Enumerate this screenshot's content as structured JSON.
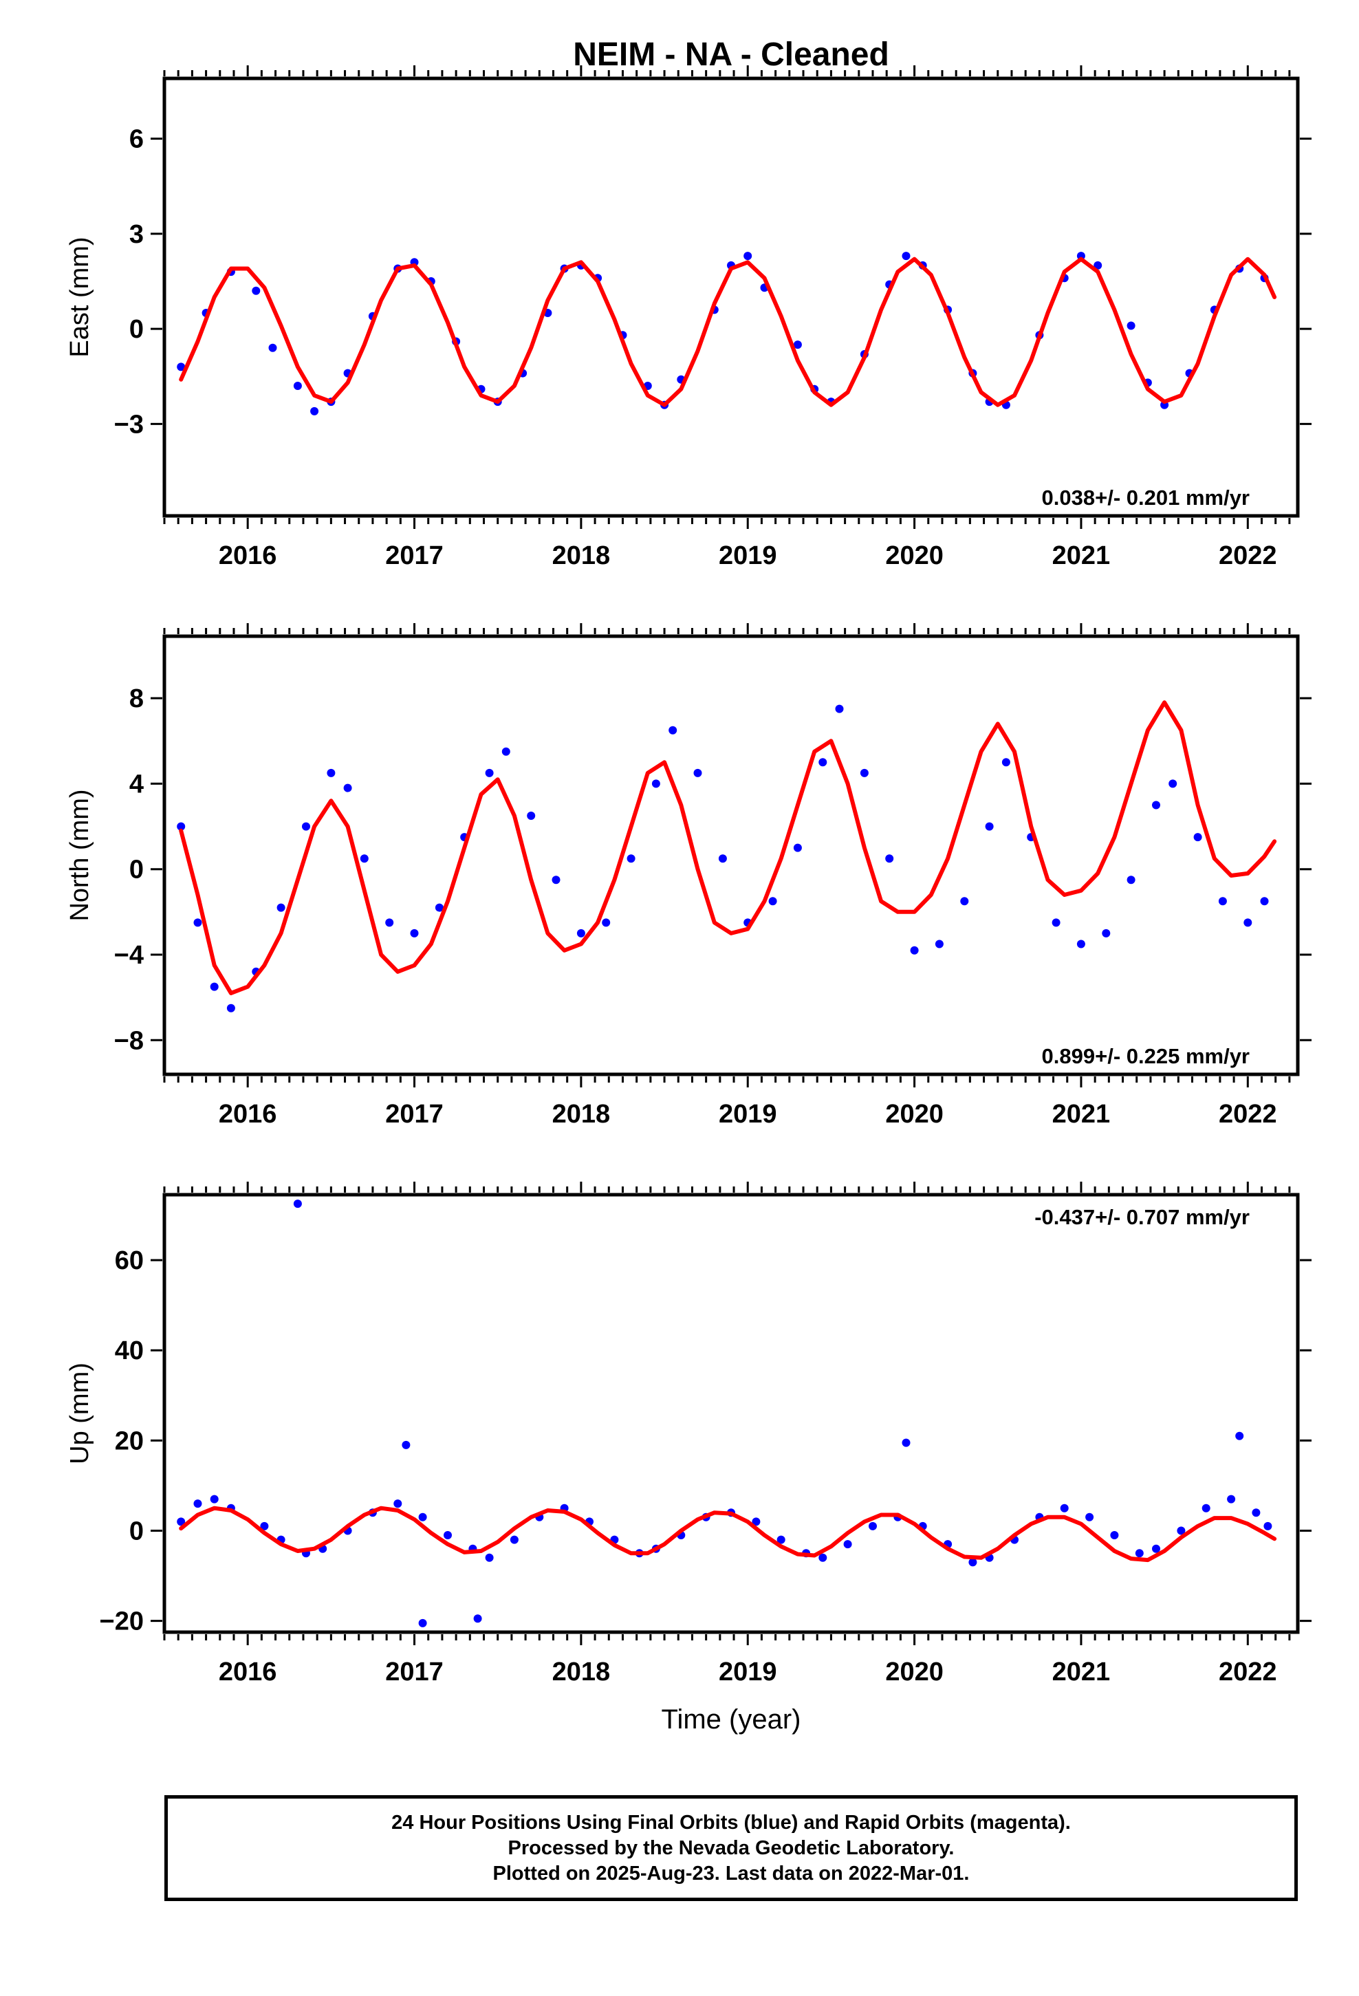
{
  "title": "NEIM  - NA - Cleaned",
  "colors": {
    "points": "#0000ff",
    "fit": "#ff0000",
    "axis": "#000000"
  },
  "footer": {
    "line1": "24 Hour Positions Using Final Orbits (blue) and Rapid Orbits (magenta).",
    "line2": "Processed by the Nevada Geodetic Laboratory.",
    "line3": "Plotted on 2025-Aug-23. Last data on 2022-Mar-01."
  },
  "chart_data": [
    {
      "type": "scatter",
      "ylabel": "East (mm)",
      "xlabel": "",
      "xlim": [
        2015.5,
        2022.3
      ],
      "ylim": [
        -5.9,
        7.9
      ],
      "xticks": [
        2016,
        2017,
        2018,
        2019,
        2020,
        2021,
        2022
      ],
      "yticks": [
        -3,
        0,
        3,
        6
      ],
      "rate_label": "0.038+/- 0.201 mm/yr",
      "rate_position": "bottom-right",
      "series": [
        {
          "kind": "points",
          "color": "#0000ff",
          "x": [
            2015.6,
            2015.75,
            2015.9,
            2016.05,
            2016.15,
            2016.3,
            2016.4,
            2016.5,
            2016.6,
            2016.75,
            2016.9,
            2017.0,
            2017.1,
            2017.25,
            2017.4,
            2017.5,
            2017.65,
            2017.8,
            2017.9,
            2018.0,
            2018.1,
            2018.25,
            2018.4,
            2018.5,
            2018.6,
            2018.8,
            2018.9,
            2019.0,
            2019.1,
            2019.3,
            2019.4,
            2019.5,
            2019.7,
            2019.85,
            2019.95,
            2020.05,
            2020.2,
            2020.35,
            2020.45,
            2020.55,
            2020.75,
            2020.9,
            2021.0,
            2021.1,
            2021.3,
            2021.4,
            2021.5,
            2021.65,
            2021.8,
            2021.95,
            2022.1
          ],
          "y": [
            -1.2,
            0.5,
            1.8,
            1.2,
            -0.6,
            -1.8,
            -2.6,
            -2.3,
            -1.4,
            0.4,
            1.9,
            2.1,
            1.5,
            -0.4,
            -1.9,
            -2.3,
            -1.4,
            0.5,
            1.9,
            2.0,
            1.6,
            -0.2,
            -1.8,
            -2.4,
            -1.6,
            0.6,
            2.0,
            2.3,
            1.3,
            -0.5,
            -1.9,
            -2.3,
            -0.8,
            1.4,
            2.3,
            2.0,
            0.6,
            -1.4,
            -2.3,
            -2.4,
            -0.2,
            1.6,
            2.3,
            2.0,
            0.1,
            -1.7,
            -2.4,
            -1.4,
            0.6,
            1.9,
            1.6
          ]
        },
        {
          "kind": "line",
          "color": "#ff0000",
          "x": [
            2015.6,
            2015.7,
            2015.8,
            2015.9,
            2016.0,
            2016.1,
            2016.2,
            2016.3,
            2016.4,
            2016.5,
            2016.6,
            2016.7,
            2016.8,
            2016.9,
            2017.0,
            2017.1,
            2017.2,
            2017.3,
            2017.4,
            2017.5,
            2017.6,
            2017.7,
            2017.8,
            2017.9,
            2018.0,
            2018.1,
            2018.2,
            2018.3,
            2018.4,
            2018.5,
            2018.6,
            2018.7,
            2018.8,
            2018.9,
            2019.0,
            2019.1,
            2019.2,
            2019.3,
            2019.4,
            2019.5,
            2019.6,
            2019.7,
            2019.8,
            2019.9,
            2020.0,
            2020.1,
            2020.2,
            2020.3,
            2020.4,
            2020.5,
            2020.6,
            2020.7,
            2020.8,
            2020.9,
            2021.0,
            2021.1,
            2021.2,
            2021.3,
            2021.4,
            2021.5,
            2021.6,
            2021.7,
            2021.8,
            2021.9,
            2022.0,
            2022.1,
            2022.16
          ],
          "y": [
            -1.6,
            -0.4,
            1.0,
            1.9,
            1.9,
            1.3,
            0.1,
            -1.2,
            -2.1,
            -2.3,
            -1.7,
            -0.5,
            0.9,
            1.9,
            2.0,
            1.4,
            0.2,
            -1.2,
            -2.1,
            -2.3,
            -1.8,
            -0.6,
            0.9,
            1.9,
            2.1,
            1.5,
            0.3,
            -1.1,
            -2.1,
            -2.4,
            -1.9,
            -0.7,
            0.8,
            1.9,
            2.1,
            1.6,
            0.4,
            -1.0,
            -2.0,
            -2.4,
            -2.0,
            -0.9,
            0.6,
            1.8,
            2.2,
            1.7,
            0.5,
            -0.9,
            -2.0,
            -2.4,
            -2.1,
            -1.0,
            0.5,
            1.8,
            2.2,
            1.8,
            0.6,
            -0.8,
            -1.9,
            -2.3,
            -2.1,
            -1.1,
            0.4,
            1.7,
            2.2,
            1.7,
            1.0
          ]
        }
      ]
    },
    {
      "type": "scatter",
      "ylabel": "North (mm)",
      "xlabel": "",
      "xlim": [
        2015.5,
        2022.3
      ],
      "ylim": [
        -9.6,
        10.9
      ],
      "xticks": [
        2016,
        2017,
        2018,
        2019,
        2020,
        2021,
        2022
      ],
      "yticks": [
        -8,
        -4,
        0,
        4,
        8
      ],
      "rate_label": "0.899+/- 0.225 mm/yr",
      "rate_position": "bottom-right",
      "series": [
        {
          "kind": "points",
          "color": "#0000ff",
          "x": [
            2015.6,
            2015.7,
            2015.8,
            2015.9,
            2016.05,
            2016.2,
            2016.35,
            2016.5,
            2016.6,
            2016.7,
            2016.85,
            2017.0,
            2017.15,
            2017.3,
            2017.45,
            2017.55,
            2017.7,
            2017.85,
            2018.0,
            2018.15,
            2018.3,
            2018.45,
            2018.55,
            2018.7,
            2018.85,
            2019.0,
            2019.15,
            2019.3,
            2019.45,
            2019.55,
            2019.7,
            2019.85,
            2020.0,
            2020.15,
            2020.3,
            2020.45,
            2020.55,
            2020.7,
            2020.85,
            2021.0,
            2021.15,
            2021.3,
            2021.45,
            2021.55,
            2021.7,
            2021.85,
            2022.0,
            2022.1
          ],
          "y": [
            2.0,
            -2.5,
            -5.5,
            -6.5,
            -4.8,
            -1.8,
            2.0,
            4.5,
            3.8,
            0.5,
            -2.5,
            -3.0,
            -1.8,
            1.5,
            4.5,
            5.5,
            2.5,
            -0.5,
            -3.0,
            -2.5,
            0.5,
            4.0,
            6.5,
            4.5,
            0.5,
            -2.5,
            -1.5,
            1.0,
            5.0,
            7.5,
            4.5,
            0.5,
            -3.8,
            -3.5,
            -1.5,
            2.0,
            5.0,
            1.5,
            -2.5,
            -3.5,
            -3.0,
            -0.5,
            3.0,
            4.0,
            1.5,
            -1.5,
            -2.5,
            -1.5
          ]
        },
        {
          "kind": "line",
          "color": "#ff0000",
          "x": [
            2015.6,
            2015.7,
            2015.8,
            2015.9,
            2016.0,
            2016.1,
            2016.2,
            2016.3,
            2016.4,
            2016.5,
            2016.6,
            2016.7,
            2016.8,
            2016.9,
            2017.0,
            2017.1,
            2017.2,
            2017.3,
            2017.4,
            2017.5,
            2017.6,
            2017.7,
            2017.8,
            2017.9,
            2018.0,
            2018.1,
            2018.2,
            2018.3,
            2018.4,
            2018.5,
            2018.6,
            2018.7,
            2018.8,
            2018.9,
            2019.0,
            2019.1,
            2019.2,
            2019.3,
            2019.4,
            2019.5,
            2019.6,
            2019.7,
            2019.8,
            2019.9,
            2020.0,
            2020.1,
            2020.2,
            2020.3,
            2020.4,
            2020.5,
            2020.6,
            2020.7,
            2020.8,
            2020.9,
            2021.0,
            2021.1,
            2021.2,
            2021.3,
            2021.4,
            2021.5,
            2021.6,
            2021.7,
            2021.8,
            2021.9,
            2022.0,
            2022.1,
            2022.16
          ],
          "y": [
            1.8,
            -1.2,
            -4.5,
            -5.8,
            -5.5,
            -4.5,
            -3.0,
            -0.5,
            2.0,
            3.2,
            2.0,
            -1.0,
            -4.0,
            -4.8,
            -4.5,
            -3.5,
            -1.5,
            1.0,
            3.5,
            4.2,
            2.5,
            -0.5,
            -3.0,
            -3.8,
            -3.5,
            -2.5,
            -0.5,
            2.0,
            4.5,
            5.0,
            3.0,
            0.0,
            -2.5,
            -3.0,
            -2.8,
            -1.5,
            0.5,
            3.0,
            5.5,
            6.0,
            4.0,
            1.0,
            -1.5,
            -2.0,
            -2.0,
            -1.2,
            0.5,
            3.0,
            5.5,
            6.8,
            5.5,
            2.0,
            -0.5,
            -1.2,
            -1.0,
            -0.2,
            1.5,
            4.0,
            6.5,
            7.8,
            6.5,
            3.0,
            0.5,
            -0.3,
            -0.2,
            0.6,
            1.3
          ]
        }
      ]
    },
    {
      "type": "scatter",
      "ylabel": "Up (mm)",
      "xlabel": "Time (year)",
      "xlim": [
        2015.5,
        2022.3
      ],
      "ylim": [
        -22.5,
        74.5
      ],
      "xticks": [
        2016,
        2017,
        2018,
        2019,
        2020,
        2021,
        2022
      ],
      "yticks": [
        -20,
        0,
        20,
        40,
        60
      ],
      "rate_label": "-0.437+/- 0.707 mm/yr",
      "rate_position": "top-right",
      "series": [
        {
          "kind": "points",
          "color": "#0000ff",
          "x": [
            2015.6,
            2015.7,
            2015.8,
            2015.9,
            2016.1,
            2016.2,
            2016.35,
            2016.45,
            2016.6,
            2016.75,
            2016.9,
            2017.05,
            2017.2,
            2017.35,
            2017.45,
            2017.6,
            2017.75,
            2017.9,
            2018.05,
            2018.2,
            2018.35,
            2018.45,
            2018.6,
            2018.75,
            2018.9,
            2019.05,
            2019.2,
            2019.35,
            2019.45,
            2019.6,
            2019.75,
            2019.9,
            2020.05,
            2020.2,
            2020.35,
            2020.45,
            2020.6,
            2020.75,
            2020.9,
            2021.05,
            2021.2,
            2021.35,
            2021.45,
            2021.6,
            2021.75,
            2021.9,
            2022.05,
            2022.12,
            2016.3,
            2017.05,
            2017.38,
            2016.95,
            2019.95,
            2021.95
          ],
          "y": [
            2.0,
            6.0,
            7.0,
            5.0,
            1.0,
            -2.0,
            -5.0,
            -4.0,
            0.0,
            4.0,
            6.0,
            3.0,
            -1.0,
            -4.0,
            -6.0,
            -2.0,
            3.0,
            5.0,
            2.0,
            -2.0,
            -5.0,
            -4.0,
            -1.0,
            3.0,
            4.0,
            2.0,
            -2.0,
            -5.0,
            -6.0,
            -3.0,
            1.0,
            3.0,
            1.0,
            -3.0,
            -7.0,
            -6.0,
            -2.0,
            3.0,
            5.0,
            3.0,
            -1.0,
            -5.0,
            -4.0,
            0.0,
            5.0,
            7.0,
            4.0,
            1.0,
            72.5,
            -20.5,
            -19.5,
            19.0,
            19.5,
            21.0
          ]
        },
        {
          "kind": "line",
          "color": "#ff0000",
          "x": [
            2015.6,
            2015.7,
            2015.8,
            2015.9,
            2016.0,
            2016.1,
            2016.2,
            2016.3,
            2016.4,
            2016.5,
            2016.6,
            2016.7,
            2016.8,
            2016.9,
            2017.0,
            2017.1,
            2017.2,
            2017.3,
            2017.4,
            2017.5,
            2017.6,
            2017.7,
            2017.8,
            2017.9,
            2018.0,
            2018.1,
            2018.2,
            2018.3,
            2018.4,
            2018.5,
            2018.6,
            2018.7,
            2018.8,
            2018.9,
            2019.0,
            2019.1,
            2019.2,
            2019.3,
            2019.4,
            2019.5,
            2019.6,
            2019.7,
            2019.8,
            2019.9,
            2020.0,
            2020.1,
            2020.2,
            2020.3,
            2020.4,
            2020.5,
            2020.6,
            2020.7,
            2020.8,
            2020.9,
            2021.0,
            2021.1,
            2021.2,
            2021.3,
            2021.4,
            2021.5,
            2021.6,
            2021.7,
            2021.8,
            2021.9,
            2022.0,
            2022.1,
            2022.16
          ],
          "y": [
            0.5,
            3.5,
            5.0,
            4.5,
            2.5,
            -0.5,
            -3.0,
            -4.5,
            -4.0,
            -2.0,
            1.0,
            3.5,
            5.0,
            4.5,
            2.5,
            -0.5,
            -3.0,
            -4.8,
            -4.5,
            -2.5,
            0.5,
            3.0,
            4.5,
            4.2,
            2.5,
            -0.5,
            -3.2,
            -5.0,
            -5.0,
            -3.0,
            0.0,
            2.5,
            4.0,
            3.8,
            2.0,
            -1.0,
            -3.5,
            -5.2,
            -5.5,
            -3.5,
            -0.5,
            2.0,
            3.5,
            3.5,
            1.5,
            -1.5,
            -4.0,
            -5.8,
            -6.0,
            -4.0,
            -1.0,
            1.5,
            3.0,
            3.0,
            1.5,
            -1.5,
            -4.5,
            -6.2,
            -6.5,
            -4.5,
            -1.5,
            1.0,
            2.8,
            2.8,
            1.5,
            -0.5,
            -1.8
          ]
        }
      ]
    }
  ]
}
